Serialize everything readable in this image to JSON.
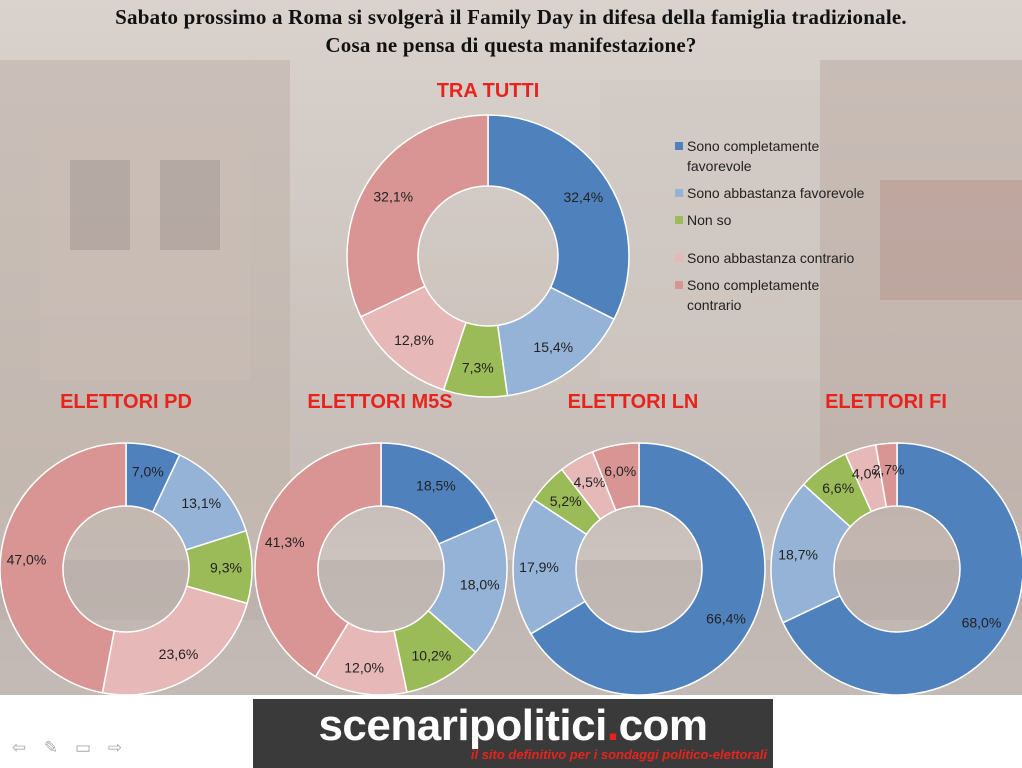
{
  "title": {
    "line1": "Sabato prossimo a Roma si svolgerà il Family Day in difesa della famiglia tradizionale.",
    "line2": "Cosa ne pensa di questa manifestazione?"
  },
  "legend": [
    {
      "label": "Sono completamente favorevole",
      "color": "#4f81bd"
    },
    {
      "label": "Sono abbastanza favorevole",
      "color": "#95b3d7"
    },
    {
      "label": "Non so",
      "color": "#9bbb59"
    },
    {
      "label": "Sono abbastanza contrario",
      "color": "#e6b9b8"
    },
    {
      "label": "Sono completamente contrario",
      "color": "#d99594"
    }
  ],
  "chart_data": [
    {
      "type": "pie",
      "title": "TRA TUTTI",
      "categories": [
        "Sono completamente favorevole",
        "Sono abbastanza favorevole",
        "Non so",
        "Sono abbastanza contrario",
        "Sono completamente contrario"
      ],
      "values": [
        32.4,
        15.4,
        7.3,
        12.8,
        32.1
      ],
      "labels": [
        "32,4%",
        "15,4%",
        "7,3%",
        "12,8%",
        "32,1%"
      ]
    },
    {
      "type": "pie",
      "title": "ELETTORI PD",
      "categories": [
        "Sono completamente favorevole",
        "Sono abbastanza favorevole",
        "Non so",
        "Sono abbastanza contrario",
        "Sono completamente contrario"
      ],
      "values": [
        7.0,
        13.1,
        9.3,
        23.6,
        47.0
      ],
      "labels": [
        "7,0%",
        "13,1%",
        "9,3%",
        "23,6%",
        "47,0%"
      ]
    },
    {
      "type": "pie",
      "title": "ELETTORI M5S",
      "categories": [
        "Sono completamente favorevole",
        "Sono abbastanza favorevole",
        "Non so",
        "Sono abbastanza contrario",
        "Sono completamente contrario"
      ],
      "values": [
        18.5,
        18.0,
        10.2,
        12.0,
        41.3
      ],
      "labels": [
        "18,5%",
        "18,0%",
        "10,2%",
        "12,0%",
        "41,3%"
      ]
    },
    {
      "type": "pie",
      "title": "ELETTORI LN",
      "categories": [
        "Sono completamente favorevole",
        "Sono abbastanza favorevole",
        "Non so",
        "Sono abbastanza contrario",
        "Sono completamente contrario"
      ],
      "values": [
        66.4,
        17.9,
        5.2,
        4.5,
        6.0
      ],
      "labels": [
        "66,4%",
        "17,9%",
        "5,2%",
        "4,5%",
        "6,0%"
      ]
    },
    {
      "type": "pie",
      "title": "ELETTORI FI",
      "categories": [
        "Sono completamente favorevole",
        "Sono abbastanza favorevole",
        "Non so",
        "Sono abbastanza contrario",
        "Sono completamente contrario"
      ],
      "values": [
        68.0,
        18.7,
        6.6,
        4.0,
        2.7
      ],
      "labels": [
        "68,0%",
        "18,7%",
        "6,6%",
        "4,0%",
        "2,7%"
      ]
    }
  ],
  "banner": {
    "main_a": "scenaripolitici",
    "main_dot": ".",
    "main_b": "com",
    "sub": "il sito definitivo per i sondaggi politico-elettorali"
  },
  "nav": {
    "prev": "⇦",
    "pen": "✎",
    "menu": "▭",
    "next": "⇨"
  }
}
